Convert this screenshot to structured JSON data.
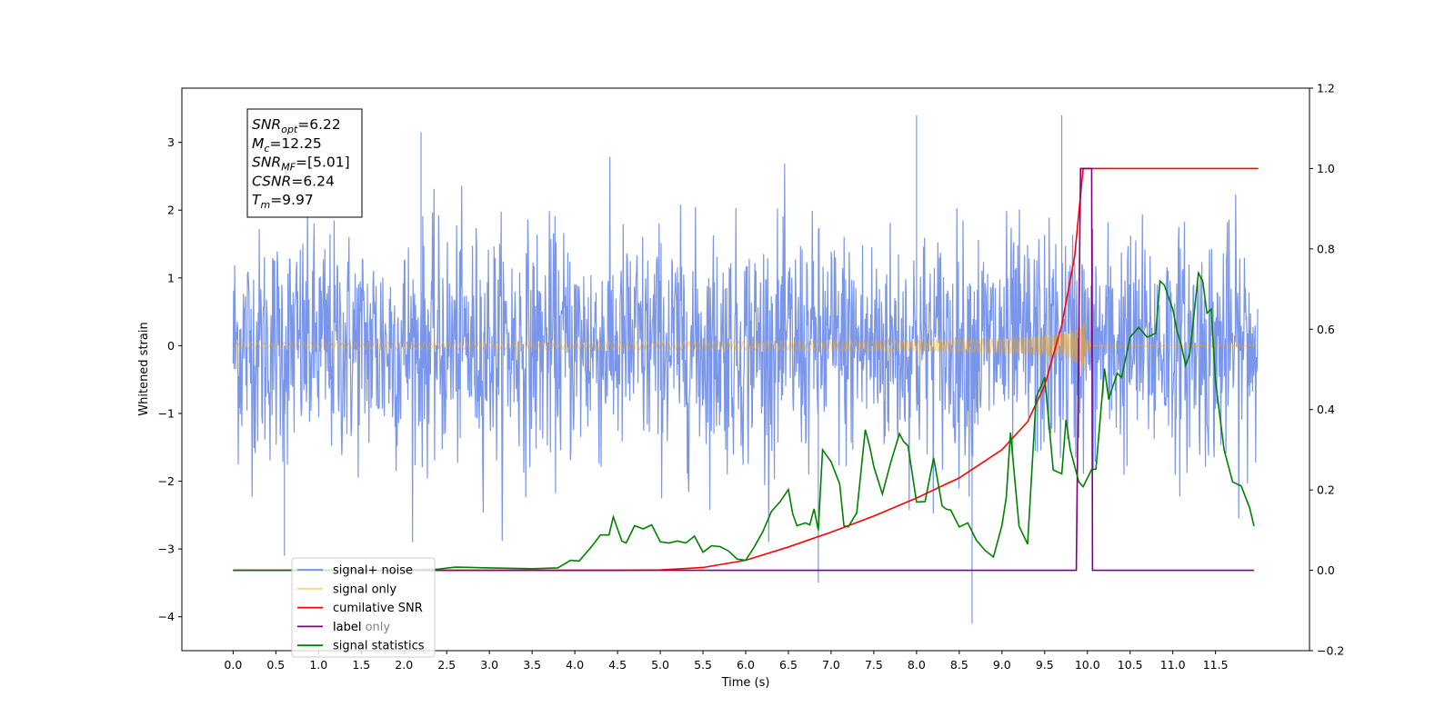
{
  "chart_data": {
    "type": "line",
    "xlabel": "Time (s)",
    "ylabel_left": "Whitened strain",
    "xlim": [
      -0.6,
      12.6
    ],
    "ylim_left": [
      -4.5,
      3.8
    ],
    "ylim_right": [
      -0.2,
      1.2
    ],
    "x_ticks": [
      "0.0",
      "0.5",
      "1.0",
      "1.5",
      "2.0",
      "2.5",
      "3.0",
      "3.5",
      "4.0",
      "4.5",
      "5.0",
      "5.5",
      "6.0",
      "6.5",
      "7.0",
      "7.5",
      "8.0",
      "8.5",
      "9.0",
      "9.5",
      "10.0",
      "10.5",
      "11.0",
      "11.5"
    ],
    "y_left_ticks": [
      "3",
      "2",
      "1",
      "0",
      "−1",
      "−2",
      "−3",
      "−4"
    ],
    "y_right_ticks": [
      "1.2",
      "1.0",
      "0.8",
      "0.6",
      "0.4",
      "0.2",
      "0.0",
      "−0.2"
    ],
    "legend_position": "lower-left",
    "annotation": [
      {
        "main": "SNR",
        "sub": "opt",
        "value": "=6.22"
      },
      {
        "main": "M",
        "sub": "c",
        "value": "=12.25"
      },
      {
        "main": "SNR",
        "sub": "MF",
        "value": "=[5.01]"
      },
      {
        "main": "CSNR",
        "sub": "",
        "value": "=6.24"
      },
      {
        "main": "T",
        "sub": "m",
        "value": "=9.97"
      }
    ],
    "series": [
      {
        "name": "signal+ noise",
        "color": "#4169e1",
        "axis": "left",
        "description_x_range": [
          0,
          12
        ],
        "typical_band": [
          -2.0,
          2.0
        ],
        "extremes": [
          [
            2.2,
            3.15
          ],
          [
            8.0,
            3.4
          ],
          [
            9.7,
            3.4
          ],
          [
            8.65,
            -4.1
          ],
          [
            6.85,
            -3.5
          ],
          [
            0.6,
            -3.1
          ]
        ]
      },
      {
        "name": "signal only",
        "color": "#ffa500",
        "axis": "left",
        "chirp_start": 0,
        "merger_time": 9.97,
        "max_amplitude": 0.4
      },
      {
        "name": "cumilative SNR",
        "color": "#ff0000",
        "axis": "right",
        "x": [
          0,
          4.5,
          5.0,
          5.5,
          6.0,
          6.5,
          7.0,
          7.5,
          8.0,
          8.5,
          9.0,
          9.3,
          9.5,
          9.7,
          9.85,
          9.95,
          10.0,
          12.0
        ],
        "y": [
          0,
          0,
          0.001,
          0.007,
          0.025,
          0.058,
          0.095,
          0.135,
          0.18,
          0.23,
          0.3,
          0.37,
          0.46,
          0.61,
          0.78,
          1.0,
          1.0,
          1.0
        ]
      },
      {
        "name": "label",
        "color": "#800080",
        "axis": "right",
        "x": [
          0,
          9.87,
          9.92,
          10.05,
          10.06,
          11.95
        ],
        "y": [
          0,
          0,
          1.0,
          1.0,
          0,
          0
        ]
      },
      {
        "name": "label only",
        "color": "#ffa500",
        "axis": "right",
        "hidden_behind_legend": true
      },
      {
        "name": "signal statistics",
        "color": "#008000",
        "axis": "right",
        "x": [
          0,
          0.5,
          1.0,
          1.5,
          2.0,
          2.4,
          2.6,
          3.0,
          3.5,
          3.8,
          3.95,
          4.05,
          4.2,
          4.3,
          4.4,
          4.45,
          4.55,
          4.6,
          4.7,
          4.8,
          4.9,
          5.0,
          5.1,
          5.2,
          5.3,
          5.4,
          5.5,
          5.6,
          5.7,
          5.8,
          5.9,
          6.0,
          6.1,
          6.2,
          6.3,
          6.4,
          6.5,
          6.55,
          6.6,
          6.7,
          6.75,
          6.8,
          6.85,
          6.9,
          6.95,
          7.0,
          7.1,
          7.15,
          7.2,
          7.3,
          7.4,
          7.45,
          7.5,
          7.6,
          7.7,
          7.8,
          7.85,
          7.9,
          8.0,
          8.1,
          8.2,
          8.3,
          8.35,
          8.4,
          8.5,
          8.6,
          8.7,
          8.8,
          8.9,
          9.0,
          9.05,
          9.1,
          9.2,
          9.3,
          9.4,
          9.5,
          9.6,
          9.7,
          9.75,
          9.8,
          9.85,
          9.9,
          9.95,
          10.05,
          10.1,
          10.2,
          10.25,
          10.3,
          10.35,
          10.4,
          10.5,
          10.6,
          10.7,
          10.8,
          10.85,
          10.9,
          11.0,
          11.05,
          11.1,
          11.15,
          11.2,
          11.3,
          11.35,
          11.4,
          11.45,
          11.5,
          11.6,
          11.7,
          11.8,
          11.9,
          11.95
        ],
        "y": [
          0,
          0,
          0,
          0,
          0,
          0.003,
          0.008,
          0.006,
          0.004,
          0.006,
          0.025,
          0.023,
          0.06,
          0.088,
          0.088,
          0.133,
          0.073,
          0.068,
          0.111,
          0.103,
          0.113,
          0.071,
          0.068,
          0.073,
          0.068,
          0.085,
          0.045,
          0.061,
          0.059,
          0.048,
          0.028,
          0.025,
          0.058,
          0.096,
          0.146,
          0.17,
          0.201,
          0.141,
          0.111,
          0.118,
          0.113,
          0.153,
          0.1,
          0.3,
          0.285,
          0.27,
          0.215,
          0.111,
          0.108,
          0.143,
          0.35,
          0.31,
          0.258,
          0.19,
          0.27,
          0.34,
          0.32,
          0.31,
          0.17,
          0.171,
          0.28,
          0.16,
          0.152,
          0.15,
          0.108,
          0.118,
          0.075,
          0.05,
          0.033,
          0.112,
          0.181,
          0.343,
          0.11,
          0.065,
          0.43,
          0.48,
          0.25,
          0.24,
          0.375,
          0.3,
          0.26,
          0.22,
          0.208,
          0.251,
          0.252,
          0.502,
          0.425,
          0.46,
          0.49,
          0.48,
          0.58,
          0.605,
          0.58,
          0.59,
          0.72,
          0.71,
          0.65,
          0.595,
          0.56,
          0.51,
          0.54,
          0.74,
          0.72,
          0.64,
          0.65,
          0.47,
          0.3,
          0.22,
          0.21,
          0.155,
          0.11
        ]
      }
    ]
  }
}
